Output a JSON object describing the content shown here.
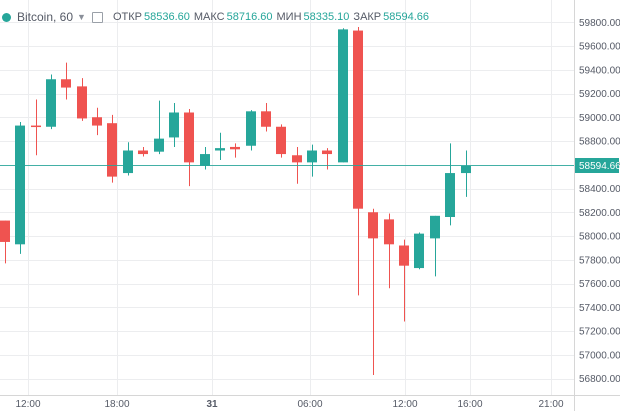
{
  "legend": {
    "symbol": "Bitcoin, 60",
    "open_label": "ОТКР",
    "open_value": "58536.60",
    "high_label": "МАКС",
    "high_value": "58716.60",
    "low_label": "МИН",
    "low_value": "58335.10",
    "close_label": "ЗАКР",
    "close_value": "58594.66",
    "icons": [
      "status-dot-icon",
      "chevron-down-icon",
      "settings-square-icon"
    ]
  },
  "last_price_label": "58594.66",
  "colors": {
    "up": "#26a69a",
    "down": "#ef5350",
    "last_price_line": "#26a69a",
    "grid": "#ecedef",
    "axis_text": "#555a66",
    "axis_line": "#d6d6d6"
  },
  "chart_data": {
    "type": "candlestick",
    "title": "",
    "xlabel": "",
    "ylabel": "",
    "ylim": [
      56650,
      60020
    ],
    "grid": true,
    "y_ticks": [
      56800,
      57000,
      57200,
      57400,
      57600,
      57800,
      58000,
      58200,
      58400,
      58600,
      58800,
      59000,
      59200,
      59400,
      59600,
      59800
    ],
    "y_tick_labels": [
      "56800.00",
      "57000.00",
      "57200.00",
      "57400.00",
      "57600.00",
      "57800.00",
      "58000.00",
      "58200.00",
      "58400.00",
      "58600.00",
      "58800.00",
      "59000.00",
      "59200.00",
      "59400.00",
      "59600.00",
      "59800.00"
    ],
    "x_ticks": [
      "12:00",
      "18:00",
      "31",
      "06:00",
      "12:00",
      "16:00",
      "21:00"
    ],
    "candles": [
      {
        "o": 58130,
        "h": 58130,
        "l": 57770,
        "c": 57950
      },
      {
        "o": 57930,
        "h": 58960,
        "l": 57850,
        "c": 58930
      },
      {
        "o": 58930,
        "h": 59150,
        "l": 58680,
        "c": 58920
      },
      {
        "o": 58920,
        "h": 59360,
        "l": 58900,
        "c": 59320
      },
      {
        "o": 59320,
        "h": 59460,
        "l": 59150,
        "c": 59250
      },
      {
        "o": 59260,
        "h": 59330,
        "l": 58970,
        "c": 58990
      },
      {
        "o": 59000,
        "h": 59080,
        "l": 58850,
        "c": 58930
      },
      {
        "o": 58950,
        "h": 59020,
        "l": 58450,
        "c": 58500
      },
      {
        "o": 58530,
        "h": 58790,
        "l": 58510,
        "c": 58720
      },
      {
        "o": 58720,
        "h": 58750,
        "l": 58670,
        "c": 58690
      },
      {
        "o": 58710,
        "h": 59140,
        "l": 58690,
        "c": 58820
      },
      {
        "o": 58830,
        "h": 59120,
        "l": 58750,
        "c": 59040
      },
      {
        "o": 59040,
        "h": 59070,
        "l": 58420,
        "c": 58620
      },
      {
        "o": 58590,
        "h": 58750,
        "l": 58560,
        "c": 58690
      },
      {
        "o": 58720,
        "h": 58870,
        "l": 58640,
        "c": 58740
      },
      {
        "o": 58750,
        "h": 58780,
        "l": 58660,
        "c": 58730
      },
      {
        "o": 58760,
        "h": 59060,
        "l": 58720,
        "c": 59050
      },
      {
        "o": 59050,
        "h": 59120,
        "l": 58880,
        "c": 58920
      },
      {
        "o": 58920,
        "h": 58940,
        "l": 58660,
        "c": 58690
      },
      {
        "o": 58680,
        "h": 58750,
        "l": 58440,
        "c": 58620
      },
      {
        "o": 58620,
        "h": 58770,
        "l": 58500,
        "c": 58720
      },
      {
        "o": 58720,
        "h": 58740,
        "l": 58560,
        "c": 58690
      },
      {
        "o": 58620,
        "h": 59750,
        "l": 58620,
        "c": 59740
      },
      {
        "o": 59730,
        "h": 59760,
        "l": 57500,
        "c": 58230
      },
      {
        "o": 58200,
        "h": 58230,
        "l": 56830,
        "c": 57980
      },
      {
        "o": 58140,
        "h": 58190,
        "l": 57560,
        "c": 57930
      },
      {
        "o": 57920,
        "h": 57970,
        "l": 57280,
        "c": 57750
      },
      {
        "o": 57730,
        "h": 58030,
        "l": 57720,
        "c": 58020
      },
      {
        "o": 57980,
        "h": 58170,
        "l": 57660,
        "c": 58170
      },
      {
        "o": 58160,
        "h": 58780,
        "l": 58090,
        "c": 58530
      },
      {
        "o": 58530,
        "h": 58720,
        "l": 58330,
        "c": 58590
      }
    ]
  }
}
